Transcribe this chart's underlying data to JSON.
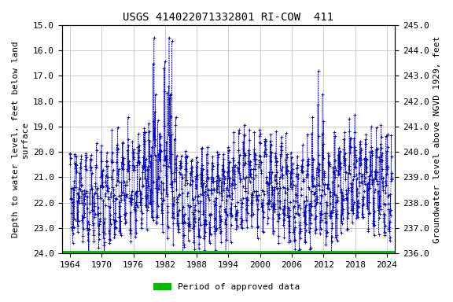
{
  "title": "USGS 414022071332801 RI-COW  411",
  "ylabel_left": "Depth to water level, feet below land\nsurface",
  "ylabel_right": "Groundwater level above NGVD 1929, feet",
  "ylim_left": [
    24.0,
    15.0
  ],
  "ylim_right": [
    236.0,
    245.0
  ],
  "yticks_left": [
    15.0,
    16.0,
    17.0,
    18.0,
    19.0,
    20.0,
    21.0,
    22.0,
    23.0,
    24.0
  ],
  "yticks_right": [
    245.0,
    244.0,
    243.0,
    242.0,
    241.0,
    240.0,
    239.0,
    238.0,
    237.0,
    236.0
  ],
  "xlim": [
    1962.5,
    2025.5
  ],
  "xticks": [
    1964,
    1970,
    1976,
    1982,
    1988,
    1994,
    2000,
    2006,
    2012,
    2018,
    2024
  ],
  "data_color": "#0000cc",
  "marker": "+",
  "markersize": 2.5,
  "line_style": "--",
  "line_width": 0.4,
  "green_bar_color": "#00bb00",
  "green_bar_linewidth": 5,
  "background_color": "#ffffff",
  "plot_bg_color": "#ffffff",
  "grid_color": "#bbbbbb",
  "title_fontsize": 10,
  "axis_label_fontsize": 8,
  "tick_fontsize": 8,
  "legend_label": "Period of approved data",
  "legend_color": "#00bb00",
  "font_family": "monospace",
  "seed": 12345,
  "base_depth": 21.5,
  "seasonal_amp": 1.3,
  "noise_std": 0.55,
  "n_per_year": 26
}
